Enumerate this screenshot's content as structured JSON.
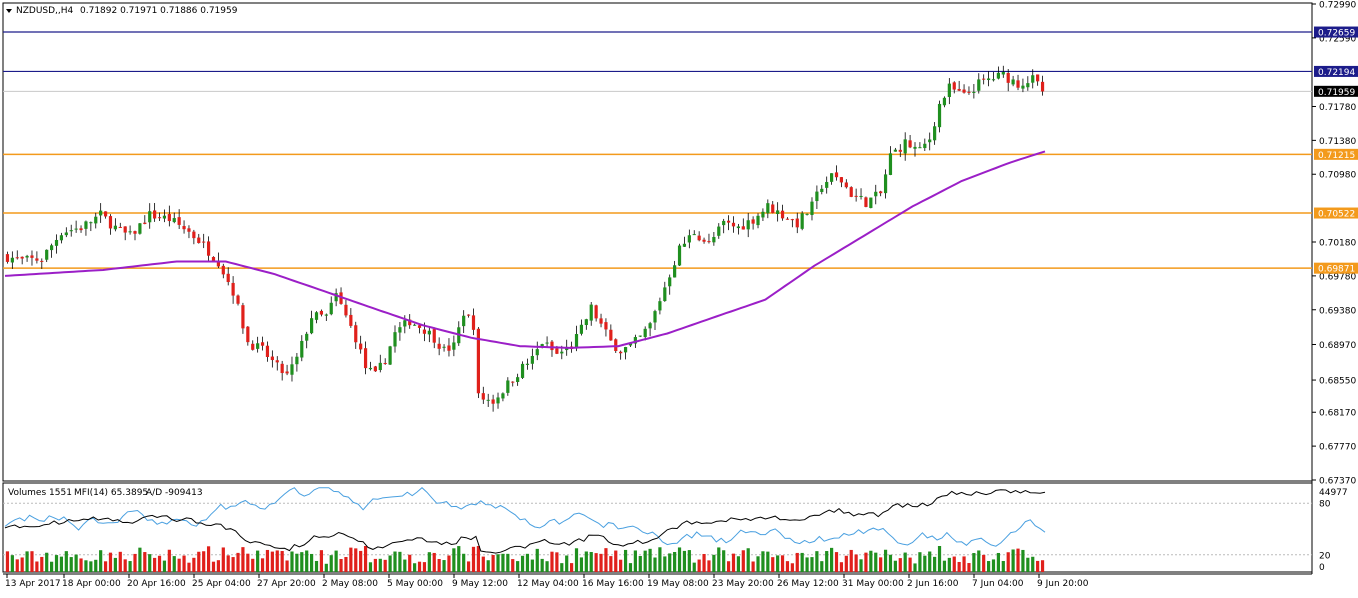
{
  "header": {
    "symbol": "NZDUSD,,H4",
    "ohlc": "0.71892 0.71971 0.71886 0.71959"
  },
  "sub_header": {
    "volumes": "Volumes 1551",
    "mfi": "MFI(14) 65.3895",
    "ad": "A/D -909413"
  },
  "colors": {
    "bull": "#1f8f1f",
    "bear": "#e0201b",
    "ma": "#9b1fc7",
    "blue_line": "#1c1c8a",
    "orange_line": "#f39a1c",
    "mfi": "#4aa0e0",
    "ad": "#000000",
    "current_label": "#000000"
  },
  "chart_data": {
    "type": "candlestick",
    "price_axis": {
      "min": 0.6737,
      "max": 0.7299,
      "ticks": [
        "0.72990",
        "0.72590",
        "0.71780",
        "0.71380",
        "0.70980",
        "0.70180",
        "0.69780",
        "0.69380",
        "0.68970",
        "0.68550",
        "0.68170",
        "0.67770",
        "0.67370"
      ]
    },
    "levels": [
      {
        "value": 0.72659,
        "label": "0.72659",
        "style": "blue"
      },
      {
        "value": 0.72194,
        "label": "0.72194",
        "style": "blue"
      },
      {
        "value": 0.71959,
        "label": "0.71959",
        "style": "current"
      },
      {
        "value": 0.71215,
        "label": "0.71215",
        "style": "orange"
      },
      {
        "value": 0.70522,
        "label": "0.70522",
        "style": "orange"
      },
      {
        "value": 0.69871,
        "label": "0.69871",
        "style": "orange"
      }
    ],
    "time_labels": [
      "13 Apr 2017",
      "18 Apr 00:00",
      "20 Apr 16:00",
      "25 Apr 04:00",
      "27 Apr 20:00",
      "2 May 08:00",
      "5 May 00:00",
      "9 May 12:00",
      "12 May 04:00",
      "16 May 16:00",
      "19 May 08:00",
      "23 May 20:00",
      "26 May 12:00",
      "31 May 00:00",
      "2 Jun 16:00",
      "7 Jun 04:00",
      "9 Jun 20:00"
    ],
    "close_path": [
      [
        0,
        0.7002
      ],
      [
        4,
        0.6996
      ],
      [
        8,
        0.6998
      ],
      [
        12,
        0.703
      ],
      [
        16,
        0.7035
      ],
      [
        20,
        0.705
      ],
      [
        24,
        0.703
      ],
      [
        26,
        0.7025
      ],
      [
        30,
        0.705
      ],
      [
        34,
        0.7045
      ],
      [
        38,
        0.703
      ],
      [
        40,
        0.702
      ],
      [
        44,
        0.6995
      ],
      [
        47,
        0.696
      ],
      [
        50,
        0.69
      ],
      [
        53,
        0.689
      ],
      [
        56,
        0.687
      ],
      [
        58,
        0.686
      ],
      [
        60,
        0.688
      ],
      [
        63,
        0.693
      ],
      [
        66,
        0.693
      ],
      [
        68,
        0.6955
      ],
      [
        70,
        0.693
      ],
      [
        72,
        0.6905
      ],
      [
        74,
        0.687
      ],
      [
        76,
        0.686
      ],
      [
        78,
        0.688
      ],
      [
        80,
        0.691
      ],
      [
        83,
        0.6925
      ],
      [
        86,
        0.6915
      ],
      [
        88,
        0.6905
      ],
      [
        90,
        0.689
      ],
      [
        92,
        0.6895
      ],
      [
        94,
        0.6935
      ],
      [
        96,
        0.692
      ],
      [
        97,
        0.6835
      ],
      [
        100,
        0.683
      ],
      [
        103,
        0.685
      ],
      [
        106,
        0.687
      ],
      [
        108,
        0.688
      ],
      [
        110,
        0.69
      ],
      [
        113,
        0.6885
      ],
      [
        116,
        0.6895
      ],
      [
        118,
        0.6915
      ],
      [
        120,
        0.694
      ],
      [
        122,
        0.692
      ],
      [
        124,
        0.69
      ],
      [
        126,
        0.689
      ],
      [
        128,
        0.6895
      ],
      [
        130,
        0.6905
      ],
      [
        132,
        0.692
      ],
      [
        134,
        0.695
      ],
      [
        136,
        0.698
      ],
      [
        138,
        0.701
      ],
      [
        141,
        0.703
      ],
      [
        144,
        0.7015
      ],
      [
        147,
        0.704
      ],
      [
        150,
        0.7035
      ],
      [
        153,
        0.7045
      ],
      [
        156,
        0.706
      ],
      [
        159,
        0.705
      ],
      [
        162,
        0.704
      ],
      [
        165,
        0.706
      ],
      [
        167,
        0.7085
      ],
      [
        169,
        0.7095
      ],
      [
        171,
        0.709
      ],
      [
        173,
        0.7075
      ],
      [
        176,
        0.7065
      ],
      [
        179,
        0.7075
      ],
      [
        181,
        0.712
      ],
      [
        184,
        0.7135
      ],
      [
        187,
        0.7125
      ],
      [
        189,
        0.714
      ],
      [
        191,
        0.718
      ],
      [
        193,
        0.72
      ],
      [
        196,
        0.719
      ],
      [
        199,
        0.7205
      ],
      [
        201,
        0.721
      ],
      [
        204,
        0.7215
      ],
      [
        207,
        0.7205
      ],
      [
        210,
        0.721
      ],
      [
        212,
        0.7196
      ]
    ],
    "ma_path": [
      [
        0,
        0.6978
      ],
      [
        20,
        0.6985
      ],
      [
        35,
        0.6995
      ],
      [
        45,
        0.6995
      ],
      [
        55,
        0.698
      ],
      [
        65,
        0.696
      ],
      [
        75,
        0.694
      ],
      [
        85,
        0.692
      ],
      [
        95,
        0.6905
      ],
      [
        105,
        0.6895
      ],
      [
        115,
        0.6893
      ],
      [
        125,
        0.6895
      ],
      [
        135,
        0.691
      ],
      [
        145,
        0.693
      ],
      [
        155,
        0.695
      ],
      [
        165,
        0.699
      ],
      [
        175,
        0.7025
      ],
      [
        185,
        0.706
      ],
      [
        195,
        0.709
      ],
      [
        205,
        0.7112
      ],
      [
        212,
        0.7125
      ]
    ],
    "candle_count": 212,
    "oscillator_levels": [
      {
        "value": 80,
        "label": "80"
      },
      {
        "value": 20,
        "label": "20"
      }
    ],
    "oscillator_extra_label": "0",
    "oscillator_top_label": "44977"
  }
}
